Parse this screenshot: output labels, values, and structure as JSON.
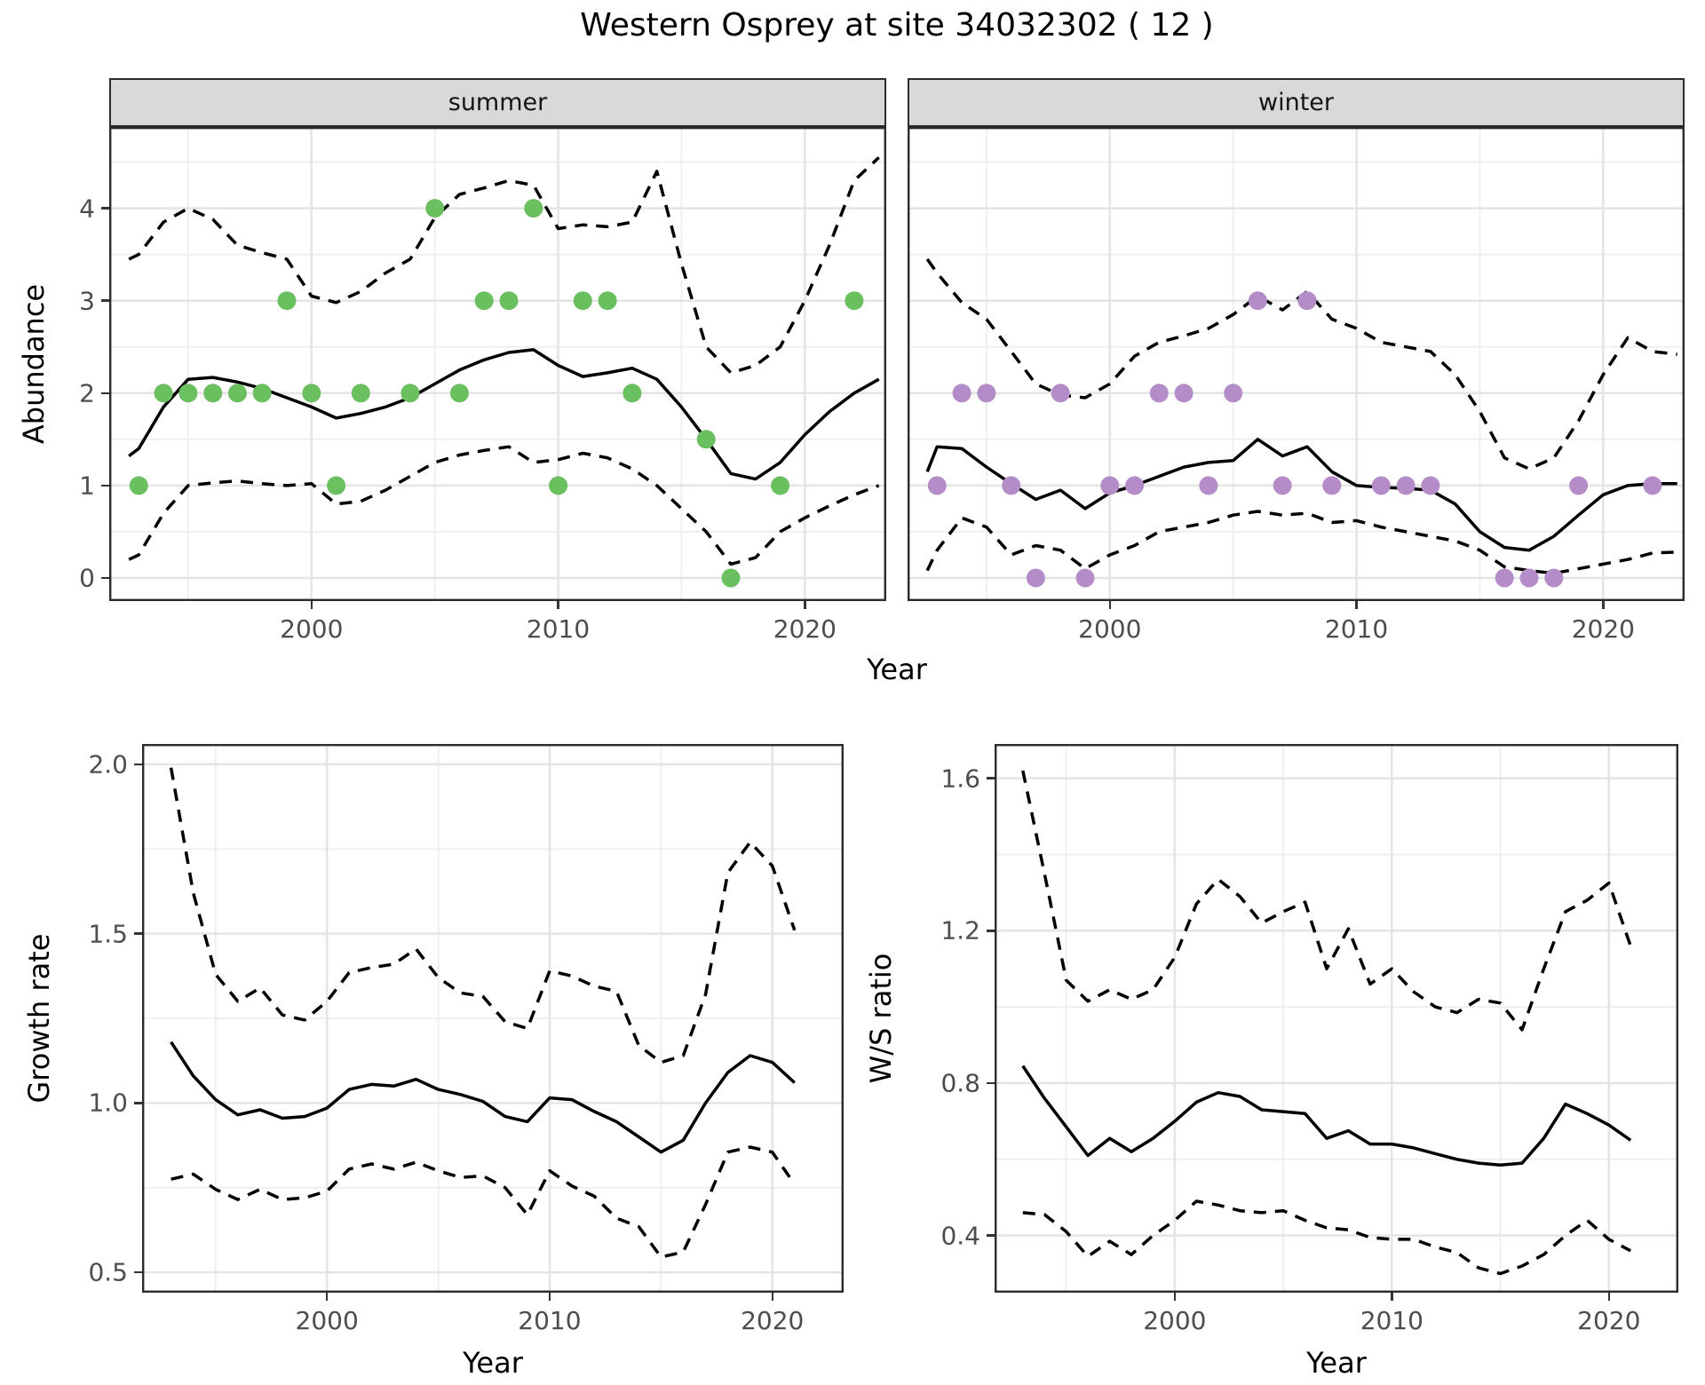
{
  "title": "Western Osprey at site 34032302 ( 12 )",
  "colors": {
    "summer_points": "#6abf5e",
    "winter_points": "#b48cc8",
    "median_line": "#000000",
    "interval_line": "#000000",
    "grid_major": "#e4e4e4",
    "grid_minor": "#efefef",
    "panel_border": "#2b2b2b",
    "strip_background": "#d9d9d9",
    "tick_text": "#4d4d4d"
  },
  "chart_data": {
    "abundance": {
      "type": "line+scatter",
      "title": "Western Osprey at site 34032302 ( 12 )",
      "ylabel": "Abundance",
      "xlabel": "Year",
      "grid": true,
      "legend": "none",
      "x_range": [
        1991.8,
        2023.3
      ],
      "y_range": [
        -0.25,
        4.88
      ],
      "x_ticks": [
        2000,
        2010,
        2020
      ],
      "x_tick_labels": [
        "2000",
        "2010",
        "2020"
      ],
      "x_minor": [
        1995,
        2005,
        2015
      ],
      "y_ticks": [
        0,
        1,
        2,
        3,
        4
      ],
      "y_tick_labels": [
        "0",
        "1",
        "2",
        "3",
        "4"
      ],
      "y_minor": [
        0.5,
        1.5,
        2.5,
        3.5,
        4.5
      ],
      "facets": [
        {
          "label": "summer",
          "points_color": "#6abf5e",
          "points": {
            "x": [
              1993,
              1994,
              1995,
              1996,
              1997,
              1998,
              1999,
              2000,
              2001,
              2002,
              2004,
              2005,
              2006,
              2007,
              2008,
              2009,
              2010,
              2011,
              2012,
              2013,
              2016,
              2017,
              2019,
              2022
            ],
            "y": [
              1,
              2,
              2,
              2,
              2,
              2,
              3,
              2,
              1,
              2,
              2,
              4,
              2,
              3,
              3,
              4,
              1,
              3,
              3,
              2,
              1.5,
              0,
              1,
              3
            ]
          },
          "line_x": [
            1992.6,
            1993,
            1994,
            1995,
            1996,
            1997,
            1998,
            1999,
            2000,
            2001,
            2002,
            2003,
            2004,
            2005,
            2006,
            2007,
            2008,
            2009,
            2010,
            2011,
            2012,
            2013,
            2014,
            2015,
            2016,
            2017,
            2018,
            2019,
            2020,
            2021,
            2022,
            2023
          ],
          "median": [
            1.32,
            1.4,
            1.85,
            2.15,
            2.17,
            2.12,
            2.05,
            1.95,
            1.85,
            1.73,
            1.78,
            1.85,
            1.95,
            2.1,
            2.25,
            2.36,
            2.44,
            2.47,
            2.3,
            2.18,
            2.22,
            2.27,
            2.15,
            1.85,
            1.5,
            1.13,
            1.07,
            1.25,
            1.55,
            1.8,
            2.0,
            2.15
          ],
          "ci_high": [
            3.45,
            3.5,
            3.85,
            4.0,
            3.88,
            3.6,
            3.52,
            3.45,
            3.05,
            2.98,
            3.1,
            3.3,
            3.45,
            3.9,
            4.15,
            4.22,
            4.3,
            4.25,
            3.78,
            3.82,
            3.8,
            3.85,
            4.4,
            3.4,
            2.5,
            2.22,
            2.3,
            2.5,
            3.0,
            3.6,
            4.3,
            4.55
          ],
          "ci_low": [
            0.2,
            0.25,
            0.7,
            1.0,
            1.03,
            1.05,
            1.02,
            1.0,
            1.02,
            0.8,
            0.83,
            0.95,
            1.1,
            1.25,
            1.33,
            1.38,
            1.42,
            1.25,
            1.28,
            1.35,
            1.3,
            1.18,
            1.0,
            0.75,
            0.5,
            0.15,
            0.22,
            0.5,
            0.65,
            0.78,
            0.9,
            1.0
          ]
        },
        {
          "label": "winter",
          "points_color": "#b48cc8",
          "points": {
            "x": [
              1993,
              1994,
              1995,
              1996,
              1997,
              1998,
              1999,
              2000,
              2001,
              2002,
              2003,
              2004,
              2005,
              2006,
              2007,
              2008,
              2009,
              2011,
              2012,
              2013,
              2016,
              2017,
              2018,
              2019,
              2022
            ],
            "y": [
              1,
              2,
              2,
              1,
              0,
              2,
              0,
              1,
              1,
              2,
              2,
              1,
              2,
              3,
              1,
              3,
              1,
              1,
              1,
              1,
              0,
              0,
              0,
              1,
              1
            ]
          },
          "line_x": [
            1992.6,
            1993,
            1994,
            1995,
            1996,
            1997,
            1998,
            1999,
            2000,
            2001,
            2002,
            2003,
            2004,
            2005,
            2006,
            2007,
            2008,
            2009,
            2010,
            2011,
            2012,
            2013,
            2014,
            2015,
            2016,
            2017,
            2018,
            2019,
            2020,
            2021,
            2022,
            2023
          ],
          "median": [
            1.15,
            1.42,
            1.4,
            1.2,
            1.02,
            0.85,
            0.95,
            0.75,
            0.92,
            1.0,
            1.1,
            1.2,
            1.25,
            1.27,
            1.5,
            1.32,
            1.42,
            1.15,
            1.0,
            0.98,
            0.97,
            0.95,
            0.8,
            0.5,
            0.33,
            0.3,
            0.45,
            0.68,
            0.9,
            1.0,
            1.02,
            1.02
          ],
          "ci_high": [
            3.45,
            3.3,
            2.98,
            2.8,
            2.45,
            2.1,
            1.98,
            1.95,
            2.1,
            2.4,
            2.55,
            2.62,
            2.7,
            2.85,
            3.05,
            2.9,
            3.1,
            2.8,
            2.7,
            2.55,
            2.5,
            2.45,
            2.2,
            1.8,
            1.3,
            1.18,
            1.3,
            1.7,
            2.2,
            2.6,
            2.45,
            2.42
          ],
          "ci_low": [
            0.08,
            0.3,
            0.65,
            0.55,
            0.25,
            0.35,
            0.3,
            0.1,
            0.25,
            0.35,
            0.5,
            0.55,
            0.6,
            0.68,
            0.72,
            0.68,
            0.7,
            0.6,
            0.62,
            0.55,
            0.5,
            0.45,
            0.4,
            0.3,
            0.12,
            0.08,
            0.05,
            0.1,
            0.15,
            0.2,
            0.27,
            0.28
          ]
        }
      ]
    },
    "growth": {
      "type": "line",
      "ylabel": "Growth rate",
      "xlabel": "Year",
      "grid": true,
      "legend": "none",
      "x_range": [
        1991.7,
        2023.2
      ],
      "y_range": [
        0.44,
        2.06
      ],
      "x_ticks": [
        2000,
        2010,
        2020
      ],
      "x_tick_labels": [
        "2000",
        "2010",
        "2020"
      ],
      "x_minor": [
        1995,
        2005,
        2015
      ],
      "y_ticks": [
        0.5,
        1.0,
        1.5,
        2.0
      ],
      "y_tick_labels": [
        "0.5",
        "1.0",
        "1.5",
        "2.0"
      ],
      "y_minor": [
        0.75,
        1.25,
        1.75
      ],
      "line_x": [
        1993,
        1994,
        1995,
        1996,
        1997,
        1998,
        1999,
        2000,
        2001,
        2002,
        2003,
        2004,
        2005,
        2006,
        2007,
        2008,
        2009,
        2010,
        2011,
        2012,
        2013,
        2014,
        2015,
        2016,
        2017,
        2018,
        2019,
        2020,
        2021
      ],
      "median": [
        1.18,
        1.08,
        1.01,
        0.965,
        0.98,
        0.955,
        0.96,
        0.985,
        1.04,
        1.055,
        1.05,
        1.07,
        1.04,
        1.025,
        1.005,
        0.96,
        0.945,
        1.015,
        1.01,
        0.975,
        0.945,
        0.9,
        0.855,
        0.89,
        1.0,
        1.09,
        1.14,
        1.12,
        1.06
      ],
      "ci_high": [
        1.99,
        1.62,
        1.38,
        1.3,
        1.34,
        1.26,
        1.245,
        1.3,
        1.385,
        1.4,
        1.41,
        1.455,
        1.37,
        1.325,
        1.315,
        1.24,
        1.22,
        1.39,
        1.375,
        1.345,
        1.33,
        1.17,
        1.12,
        1.14,
        1.32,
        1.68,
        1.77,
        1.7,
        1.51
      ],
      "ci_low": [
        0.775,
        0.79,
        0.745,
        0.715,
        0.745,
        0.715,
        0.72,
        0.74,
        0.805,
        0.82,
        0.805,
        0.825,
        0.8,
        0.78,
        0.785,
        0.75,
        0.67,
        0.8,
        0.755,
        0.725,
        0.66,
        0.635,
        0.545,
        0.56,
        0.7,
        0.855,
        0.87,
        0.855,
        0.76
      ]
    },
    "ws_ratio": {
      "type": "line",
      "ylabel": "W/S ratio",
      "xlabel": "Year",
      "grid": true,
      "legend": "none",
      "x_range": [
        1991.7,
        2023.2
      ],
      "y_range": [
        0.25,
        1.69
      ],
      "x_ticks": [
        2000,
        2010,
        2020
      ],
      "x_tick_labels": [
        "2000",
        "2010",
        "2020"
      ],
      "x_minor": [
        1995,
        2005,
        2015
      ],
      "y_ticks": [
        0.4,
        0.8,
        1.2,
        1.6
      ],
      "y_tick_labels": [
        "0.4",
        "0.8",
        "1.2",
        "1.6"
      ],
      "y_minor": [
        0.6,
        1.0,
        1.4
      ],
      "line_x": [
        1993,
        1994,
        1995,
        1996,
        1997,
        1998,
        1999,
        2000,
        2001,
        2002,
        2003,
        2004,
        2005,
        2006,
        2007,
        2008,
        2009,
        2010,
        2011,
        2012,
        2013,
        2014,
        2015,
        2016,
        2017,
        2018,
        2019,
        2020,
        2021
      ],
      "median": [
        0.845,
        0.76,
        0.685,
        0.61,
        0.655,
        0.62,
        0.655,
        0.7,
        0.75,
        0.775,
        0.765,
        0.73,
        0.725,
        0.72,
        0.655,
        0.675,
        0.64,
        0.64,
        0.63,
        0.615,
        0.6,
        0.59,
        0.585,
        0.59,
        0.655,
        0.745,
        0.72,
        0.69,
        0.65
      ],
      "ci_high": [
        1.62,
        1.35,
        1.07,
        1.015,
        1.045,
        1.02,
        1.045,
        1.13,
        1.27,
        1.335,
        1.29,
        1.22,
        1.25,
        1.275,
        1.1,
        1.205,
        1.06,
        1.1,
        1.04,
        1.0,
        0.985,
        1.02,
        1.01,
        0.94,
        1.1,
        1.25,
        1.28,
        1.325,
        1.16
      ],
      "ci_low": [
        0.46,
        0.455,
        0.41,
        0.345,
        0.385,
        0.35,
        0.4,
        0.44,
        0.49,
        0.48,
        0.465,
        0.46,
        0.465,
        0.44,
        0.42,
        0.415,
        0.395,
        0.39,
        0.39,
        0.37,
        0.355,
        0.315,
        0.3,
        0.32,
        0.35,
        0.4,
        0.44,
        0.39,
        0.36
      ]
    }
  }
}
